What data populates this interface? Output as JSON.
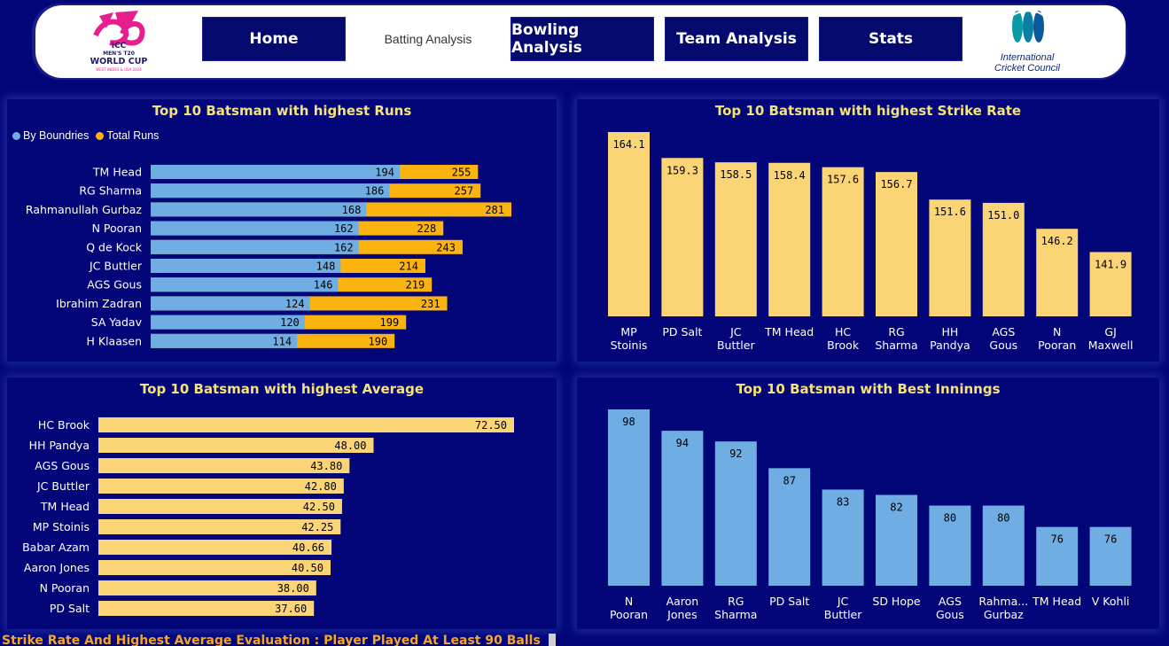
{
  "colors": {
    "background": "#020679",
    "title": "#f6e27a",
    "boundaries": "#6fade3",
    "total_runs": "#fbb40f",
    "strike_rate": "#fbd476",
    "average": "#fbd476",
    "best": "#6fade3",
    "footer": "#f7a623"
  },
  "header": {
    "logo_left": "t20-world-cup-logo",
    "logo_right": "icc-logo",
    "logo_left_text": [
      "ICC",
      "MEN'S T20",
      "WORLD CUP",
      "WEST INDIES & USA 2024"
    ],
    "logo_right_text": [
      "International",
      "Cricket Council"
    ],
    "nav": {
      "home": "Home",
      "batting": "Batting Analysis",
      "bowling": "Bowling Analysis",
      "team": "Team Analysis",
      "stats": "Stats"
    }
  },
  "legend": {
    "boundaries": "By Boundries",
    "total": "Total Runs"
  },
  "footer_note": "Strike Rate And Highest Average Evaluation : Player Played At Least 90 Balls",
  "chart_data": [
    {
      "type": "bar",
      "title": "Top 10 Batsman with highest Runs",
      "categories": [
        "TM Head",
        "RG Sharma",
        "Rahmanullah Gurbaz",
        "N Pooran",
        "Q de Kock",
        "JC Buttler",
        "AGS Gous",
        "Ibrahim Zadran",
        "SA Yadav",
        "H Klaasen"
      ],
      "series": [
        {
          "name": "By Boundries",
          "values": [
            194,
            186,
            168,
            162,
            162,
            148,
            146,
            124,
            120,
            114
          ]
        },
        {
          "name": "Total Runs",
          "values": [
            255,
            257,
            281,
            228,
            243,
            214,
            219,
            231,
            199,
            190
          ]
        }
      ],
      "orientation": "horizontal",
      "legend": "top-left"
    },
    {
      "type": "bar",
      "title": "Top 10 Batsman with highest Strike Rate",
      "categories": [
        "MP Stoinis",
        "PD Salt",
        "JC Buttler",
        "TM Head",
        "HC Brook",
        "RG Sharma",
        "HH Pandya",
        "AGS Gous",
        "N Pooran",
        "GJ Maxwell"
      ],
      "labels": [
        [
          "MP",
          "Stoinis"
        ],
        [
          "PD Salt"
        ],
        [
          "JC",
          "Buttler"
        ],
        [
          "TM Head"
        ],
        [
          "HC",
          "Brook"
        ],
        [
          "RG",
          "Sharma"
        ],
        [
          "HH",
          "Pandya"
        ],
        [
          "AGS",
          "Gous"
        ],
        [
          "N",
          "Pooran"
        ],
        [
          "GJ",
          "Maxwell"
        ]
      ],
      "values": [
        164.1,
        159.3,
        158.5,
        158.4,
        157.6,
        156.7,
        151.6,
        151.0,
        146.2,
        141.9
      ],
      "value_labels": [
        "164.1",
        "159.3",
        "158.5",
        "158.4",
        "157.6",
        "156.7",
        "151.6",
        "151.0",
        "146.2",
        "141.9"
      ]
    },
    {
      "type": "bar",
      "title": "Top 10 Batsman with highest Average",
      "categories": [
        "HC Brook",
        "HH Pandya",
        "AGS Gous",
        "JC Buttler",
        "TM Head",
        "MP Stoinis",
        "Babar Azam",
        "Aaron Jones",
        "N Pooran",
        "PD Salt"
      ],
      "values": [
        72.5,
        48.0,
        43.8,
        42.8,
        42.5,
        42.25,
        40.66,
        40.5,
        38.0,
        37.6
      ],
      "value_labels": [
        "72.50",
        "48.00",
        "43.80",
        "42.80",
        "42.50",
        "42.25",
        "40.66",
        "40.50",
        "38.00",
        "37.60"
      ],
      "orientation": "horizontal"
    },
    {
      "type": "bar",
      "title": "Top 10 Batsman with Best Inninngs",
      "categories": [
        "N Pooran",
        "Aaron Jones",
        "RG Sharma",
        "PD Salt",
        "JC Buttler",
        "SD Hope",
        "AGS Gous",
        "Rahma... Gurbaz",
        "TM Head",
        "V Kohli"
      ],
      "labels": [
        [
          "N",
          "Pooran"
        ],
        [
          "Aaron",
          "Jones"
        ],
        [
          "RG",
          "Sharma"
        ],
        [
          "PD Salt"
        ],
        [
          "JC",
          "Buttler"
        ],
        [
          "SD Hope"
        ],
        [
          "AGS",
          "Gous"
        ],
        [
          "Rahma...",
          "Gurbaz"
        ],
        [
          "TM Head"
        ],
        [
          "V Kohli"
        ]
      ],
      "values": [
        98,
        94,
        92,
        87,
        83,
        82,
        80,
        80,
        76,
        76
      ],
      "value_labels": [
        "98",
        "94",
        "92",
        "87",
        "83",
        "82",
        "80",
        "80",
        "76",
        "76"
      ]
    }
  ]
}
